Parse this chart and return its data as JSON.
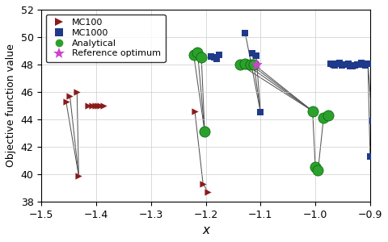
{
  "xlim": [
    -1.5,
    -0.9
  ],
  "ylim": [
    38,
    52
  ],
  "xlabel": "x",
  "ylabel": "Objective function value",
  "mc100_color": "#8b1a1a",
  "mc1000_color": "#1f3a8a",
  "analytical_color": "#2ca02c",
  "reference_color": "#cc44cc",
  "mc100_points": [
    [
      -1.455,
      45.3
    ],
    [
      -1.448,
      45.7
    ],
    [
      -1.435,
      46.0
    ],
    [
      -1.415,
      45.0
    ],
    [
      -1.408,
      45.0
    ],
    [
      -1.402,
      45.0
    ],
    [
      -1.397,
      45.0
    ],
    [
      -1.392,
      45.0
    ],
    [
      -1.386,
      45.0
    ],
    [
      -1.432,
      39.9
    ],
    [
      -1.22,
      44.6
    ],
    [
      -1.205,
      39.3
    ],
    [
      -1.196,
      38.7
    ]
  ],
  "mc100_line_groups": [
    [
      [
        -1.455,
        45.3
      ],
      [
        -1.432,
        39.9
      ]
    ],
    [
      [
        -1.448,
        45.7
      ],
      [
        -1.432,
        39.9
      ]
    ],
    [
      [
        -1.435,
        46.0
      ],
      [
        -1.432,
        39.9
      ]
    ],
    [
      [
        -1.415,
        45.0
      ],
      [
        -1.386,
        45.0
      ]
    ],
    [
      [
        -1.408,
        45.0
      ],
      [
        -1.386,
        45.0
      ]
    ],
    [
      [
        -1.402,
        45.0
      ],
      [
        -1.386,
        45.0
      ]
    ],
    [
      [
        -1.397,
        45.0
      ],
      [
        -1.386,
        45.0
      ]
    ],
    [
      [
        -1.392,
        45.0
      ],
      [
        -1.386,
        45.0
      ]
    ],
    [
      [
        -1.22,
        44.6
      ],
      [
        -1.205,
        39.3
      ]
    ],
    [
      [
        -1.205,
        39.3
      ],
      [
        -1.196,
        38.7
      ]
    ]
  ],
  "mc1000_points": [
    [
      -1.19,
      48.6
    ],
    [
      -1.185,
      48.5
    ],
    [
      -1.18,
      48.4
    ],
    [
      -1.175,
      48.7
    ],
    [
      -1.128,
      50.3
    ],
    [
      -1.115,
      48.8
    ],
    [
      -1.108,
      48.65
    ],
    [
      -1.1,
      44.5
    ],
    [
      -0.972,
      48.05
    ],
    [
      -0.968,
      48.0
    ],
    [
      -0.964,
      47.95
    ],
    [
      -0.96,
      48.05
    ],
    [
      -0.956,
      48.1
    ],
    [
      -0.952,
      47.95
    ],
    [
      -0.948,
      48.0
    ],
    [
      -0.944,
      48.0
    ],
    [
      -0.94,
      48.05
    ],
    [
      -0.936,
      47.9
    ],
    [
      -0.932,
      47.85
    ],
    [
      -0.928,
      47.95
    ],
    [
      -0.924,
      48.0
    ],
    [
      -0.92,
      48.0
    ],
    [
      -0.916,
      48.1
    ],
    [
      -0.912,
      48.0
    ],
    [
      -0.908,
      47.95
    ],
    [
      -0.904,
      48.05
    ],
    [
      -0.9,
      41.3
    ],
    [
      -0.896,
      43.9
    ]
  ],
  "mc1000_line_groups": [
    [
      [
        -1.128,
        50.3
      ],
      [
        -1.1,
        44.5
      ]
    ],
    [
      [
        -1.115,
        48.8
      ],
      [
        -1.1,
        44.5
      ]
    ],
    [
      [
        -1.108,
        48.65
      ],
      [
        -1.1,
        44.5
      ]
    ],
    [
      [
        -0.9,
        41.3
      ],
      [
        -0.904,
        48.05
      ]
    ],
    [
      [
        -0.896,
        43.9
      ],
      [
        -0.904,
        48.05
      ]
    ]
  ],
  "analytical_points": [
    [
      -1.222,
      48.7
    ],
    [
      -1.215,
      48.9
    ],
    [
      -1.208,
      48.5
    ],
    [
      -1.202,
      43.1
    ],
    [
      -1.138,
      48.0
    ],
    [
      -1.128,
      48.05
    ],
    [
      -1.118,
      48.0
    ],
    [
      -1.112,
      48.0
    ],
    [
      -1.005,
      44.6
    ],
    [
      -1.0,
      40.5
    ],
    [
      -0.995,
      40.3
    ],
    [
      -0.985,
      44.1
    ],
    [
      -0.977,
      44.3
    ]
  ],
  "analytical_line_groups": [
    [
      [
        -1.222,
        48.7
      ],
      [
        -1.202,
        43.1
      ]
    ],
    [
      [
        -1.215,
        48.9
      ],
      [
        -1.202,
        43.1
      ]
    ],
    [
      [
        -1.208,
        48.5
      ],
      [
        -1.202,
        43.1
      ]
    ],
    [
      [
        -1.138,
        48.0
      ],
      [
        -1.005,
        44.6
      ]
    ],
    [
      [
        -1.128,
        48.05
      ],
      [
        -1.005,
        44.6
      ]
    ],
    [
      [
        -1.118,
        48.0
      ],
      [
        -1.005,
        44.6
      ]
    ],
    [
      [
        -1.112,
        48.0
      ],
      [
        -1.005,
        44.6
      ]
    ],
    [
      [
        -1.005,
        44.6
      ],
      [
        -1.0,
        40.5
      ]
    ],
    [
      [
        -1.0,
        40.5
      ],
      [
        -0.995,
        40.3
      ]
    ],
    [
      [
        -0.995,
        40.3
      ],
      [
        -0.985,
        44.1
      ]
    ],
    [
      [
        -0.985,
        44.1
      ],
      [
        -0.977,
        44.3
      ]
    ]
  ],
  "reference_point": [
    -1.108,
    48.0
  ],
  "figsize": [
    4.8,
    3.0
  ],
  "dpi": 100
}
